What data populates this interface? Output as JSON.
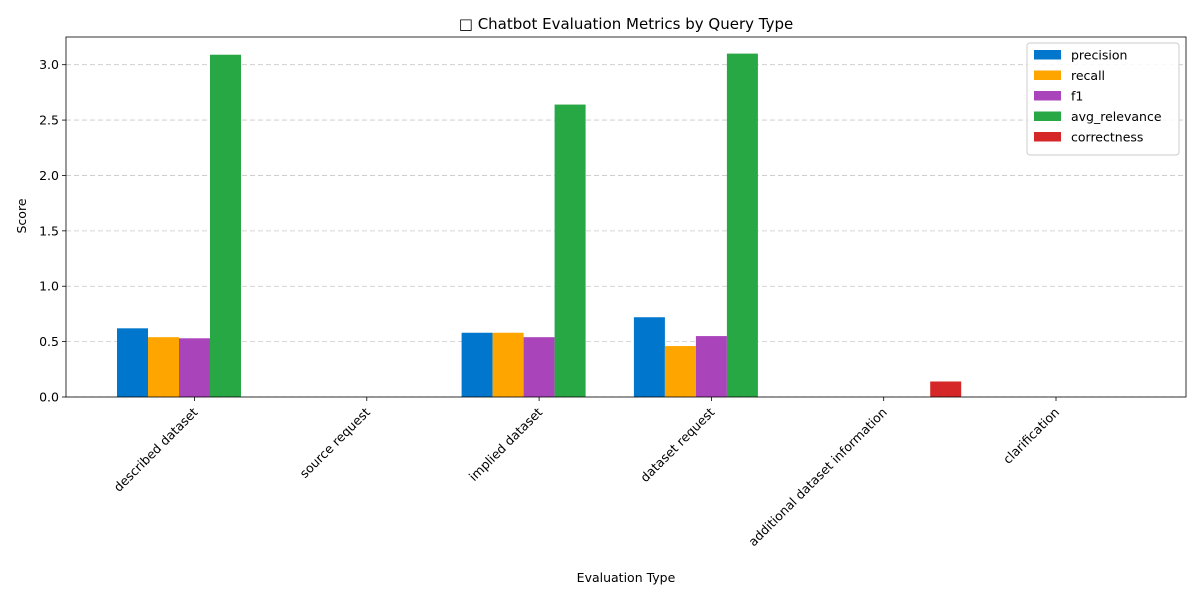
{
  "chart_data": {
    "type": "bar",
    "title": "□ Chatbot Evaluation Metrics by Query Type",
    "xlabel": "Evaluation Type",
    "ylabel": "Score",
    "ylim": [
      0,
      3.25
    ],
    "yticks": [
      0.0,
      0.5,
      1.0,
      1.5,
      2.0,
      2.5,
      3.0
    ],
    "ytick_labels": [
      "0.0",
      "0.5",
      "1.0",
      "1.5",
      "2.0",
      "2.5",
      "3.0"
    ],
    "grid": "y-dashed",
    "legend_position": "top-right",
    "categories": [
      "described dataset",
      "source request",
      "implied dataset",
      "dataset request",
      "additional dataset information",
      "clarification"
    ],
    "series": [
      {
        "name": "precision",
        "color": "#0077cc",
        "values": [
          0.62,
          0,
          0.58,
          0.72,
          0,
          0
        ]
      },
      {
        "name": "recall",
        "color": "#ffa500",
        "values": [
          0.54,
          0,
          0.58,
          0.46,
          0,
          0
        ]
      },
      {
        "name": "f1",
        "color": "#aa44bb",
        "values": [
          0.53,
          0,
          0.54,
          0.55,
          0,
          0
        ]
      },
      {
        "name": "avg_relevance",
        "color": "#28a745",
        "values": [
          3.09,
          0,
          2.64,
          3.1,
          0,
          0
        ]
      },
      {
        "name": "correctness",
        "color": "#d62728",
        "values": [
          0,
          0,
          0,
          0,
          0.14,
          0
        ]
      }
    ]
  }
}
